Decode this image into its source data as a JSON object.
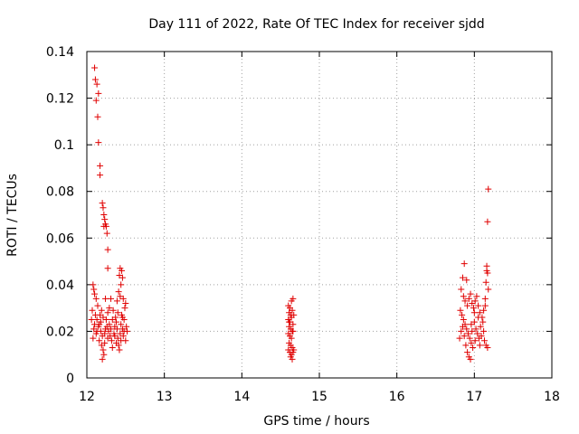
{
  "chart_data": {
    "type": "scatter",
    "title": "Day 111 of 2022, Rate Of TEC Index for receiver sjdd",
    "xlabel": "GPS time / hours",
    "ylabel": "ROTI / TECUs",
    "xlim": [
      12,
      18
    ],
    "ylim": [
      0,
      0.14
    ],
    "xticks": [
      "12",
      "13",
      "14",
      "15",
      "16",
      "17",
      "18"
    ],
    "yticks": [
      "0",
      "0.02",
      "0.04",
      "0.06",
      "0.08",
      "0.1",
      "0.12",
      "0.14"
    ],
    "grid": true,
    "marker": "+",
    "marker_color": "#e00000",
    "series": [
      {
        "name": "ROTI",
        "points": [
          [
            12.1,
            0.133
          ],
          [
            12.11,
            0.128
          ],
          [
            12.13,
            0.126
          ],
          [
            12.12,
            0.119
          ],
          [
            12.15,
            0.122
          ],
          [
            12.14,
            0.112
          ],
          [
            12.15,
            0.101
          ],
          [
            12.17,
            0.091
          ],
          [
            12.17,
            0.087
          ],
          [
            12.2,
            0.075
          ],
          [
            12.21,
            0.073
          ],
          [
            12.22,
            0.07
          ],
          [
            12.23,
            0.068
          ],
          [
            12.24,
            0.066
          ],
          [
            12.22,
            0.065
          ],
          [
            12.25,
            0.065
          ],
          [
            12.26,
            0.062
          ],
          [
            12.27,
            0.055
          ],
          [
            12.27,
            0.047
          ],
          [
            12.43,
            0.047
          ],
          [
            12.45,
            0.046
          ],
          [
            12.42,
            0.044
          ],
          [
            12.46,
            0.043
          ],
          [
            12.44,
            0.04
          ],
          [
            12.41,
            0.037
          ],
          [
            12.43,
            0.035
          ],
          [
            12.47,
            0.034
          ],
          [
            12.39,
            0.033
          ],
          [
            12.08,
            0.04
          ],
          [
            12.09,
            0.038
          ],
          [
            12.1,
            0.036
          ],
          [
            12.12,
            0.034
          ],
          [
            12.14,
            0.031
          ],
          [
            12.07,
            0.029
          ],
          [
            12.11,
            0.027
          ],
          [
            12.13,
            0.025
          ],
          [
            12.16,
            0.023
          ],
          [
            12.09,
            0.021
          ],
          [
            12.12,
            0.019
          ],
          [
            12.08,
            0.017
          ],
          [
            12.15,
            0.022
          ],
          [
            12.18,
            0.02
          ],
          [
            12.2,
            0.018
          ],
          [
            12.19,
            0.014
          ],
          [
            12.21,
            0.012
          ],
          [
            12.22,
            0.01
          ],
          [
            12.2,
            0.008
          ],
          [
            12.23,
            0.015
          ],
          [
            12.25,
            0.025
          ],
          [
            12.26,
            0.022
          ],
          [
            12.28,
            0.02
          ],
          [
            12.3,
            0.018
          ],
          [
            12.27,
            0.028
          ],
          [
            12.29,
            0.03
          ],
          [
            12.31,
            0.034
          ],
          [
            12.24,
            0.034
          ],
          [
            12.32,
            0.016
          ],
          [
            12.33,
            0.013
          ],
          [
            12.35,
            0.019
          ],
          [
            12.36,
            0.022
          ],
          [
            12.37,
            0.026
          ],
          [
            12.38,
            0.024
          ],
          [
            12.34,
            0.029
          ],
          [
            12.39,
            0.021
          ],
          [
            12.4,
            0.017
          ],
          [
            12.41,
            0.014
          ],
          [
            12.42,
            0.012
          ],
          [
            12.43,
            0.019
          ],
          [
            12.44,
            0.023
          ],
          [
            12.45,
            0.027
          ],
          [
            12.46,
            0.021
          ],
          [
            12.47,
            0.018
          ],
          [
            12.48,
            0.025
          ],
          [
            12.49,
            0.03
          ],
          [
            12.5,
            0.032
          ],
          [
            12.51,
            0.022
          ],
          [
            12.52,
            0.02
          ],
          [
            12.5,
            0.016
          ],
          [
            12.17,
            0.027
          ],
          [
            12.19,
            0.029
          ],
          [
            12.23,
            0.019
          ],
          [
            12.27,
            0.017
          ],
          [
            12.29,
            0.023
          ],
          [
            12.31,
            0.021
          ],
          [
            12.33,
            0.025
          ],
          [
            12.36,
            0.018
          ],
          [
            12.38,
            0.015
          ],
          [
            12.4,
            0.028
          ],
          [
            12.44,
            0.016
          ],
          [
            12.46,
            0.026
          ],
          [
            12.48,
            0.02
          ],
          [
            12.1,
            0.023
          ],
          [
            12.06,
            0.025
          ],
          [
            12.13,
            0.02
          ],
          [
            12.16,
            0.016
          ],
          [
            12.18,
            0.024
          ],
          [
            12.21,
            0.026
          ],
          [
            12.24,
            0.021
          ],
          [
            14.6,
            0.031
          ],
          [
            14.62,
            0.03
          ],
          [
            14.64,
            0.033
          ],
          [
            14.66,
            0.034
          ],
          [
            14.61,
            0.028
          ],
          [
            14.63,
            0.027
          ],
          [
            14.65,
            0.029
          ],
          [
            14.6,
            0.025
          ],
          [
            14.62,
            0.024
          ],
          [
            14.64,
            0.026
          ],
          [
            14.66,
            0.023
          ],
          [
            14.61,
            0.022
          ],
          [
            14.63,
            0.021
          ],
          [
            14.65,
            0.02
          ],
          [
            14.6,
            0.019
          ],
          [
            14.62,
            0.018
          ],
          [
            14.64,
            0.017
          ],
          [
            14.66,
            0.02
          ],
          [
            14.61,
            0.015
          ],
          [
            14.63,
            0.014
          ],
          [
            14.65,
            0.013
          ],
          [
            14.67,
            0.012
          ],
          [
            14.6,
            0.012
          ],
          [
            14.62,
            0.011
          ],
          [
            14.64,
            0.01
          ],
          [
            14.63,
            0.009
          ],
          [
            14.65,
            0.008
          ],
          [
            14.66,
            0.011
          ],
          [
            14.61,
            0.024
          ],
          [
            14.67,
            0.027
          ],
          [
            16.85,
            0.043
          ],
          [
            16.87,
            0.049
          ],
          [
            16.9,
            0.042
          ],
          [
            16.83,
            0.038
          ],
          [
            16.86,
            0.035
          ],
          [
            16.88,
            0.033
          ],
          [
            16.91,
            0.031
          ],
          [
            16.93,
            0.034
          ],
          [
            16.95,
            0.036
          ],
          [
            16.97,
            0.032
          ],
          [
            16.99,
            0.03
          ],
          [
            17.01,
            0.033
          ],
          [
            17.03,
            0.035
          ],
          [
            17.05,
            0.031
          ],
          [
            17.07,
            0.028
          ],
          [
            16.82,
            0.029
          ],
          [
            16.84,
            0.027
          ],
          [
            16.86,
            0.025
          ],
          [
            16.88,
            0.023
          ],
          [
            16.9,
            0.021
          ],
          [
            16.92,
            0.019
          ],
          [
            16.94,
            0.017
          ],
          [
            16.96,
            0.015
          ],
          [
            16.98,
            0.013
          ],
          [
            16.91,
            0.011
          ],
          [
            16.93,
            0.009
          ],
          [
            16.95,
            0.008
          ],
          [
            16.89,
            0.014
          ],
          [
            16.87,
            0.018
          ],
          [
            16.85,
            0.022
          ],
          [
            17.0,
            0.024
          ],
          [
            17.02,
            0.021
          ],
          [
            17.04,
            0.019
          ],
          [
            17.06,
            0.017
          ],
          [
            17.08,
            0.022
          ],
          [
            17.1,
            0.026
          ],
          [
            17.12,
            0.029
          ],
          [
            17.14,
            0.031
          ],
          [
            17.11,
            0.024
          ],
          [
            17.09,
            0.018
          ],
          [
            17.13,
            0.016
          ],
          [
            17.15,
            0.014
          ],
          [
            17.17,
            0.013
          ],
          [
            17.16,
            0.046
          ],
          [
            17.17,
            0.045
          ],
          [
            17.16,
            0.048
          ],
          [
            17.18,
            0.038
          ],
          [
            17.15,
            0.041
          ],
          [
            17.14,
            0.034
          ],
          [
            17.18,
            0.081
          ],
          [
            17.17,
            0.067
          ],
          [
            16.97,
            0.02
          ],
          [
            17.01,
            0.016
          ],
          [
            17.05,
            0.026
          ],
          [
            16.83,
            0.02
          ],
          [
            16.81,
            0.017
          ],
          [
            17.12,
            0.02
          ],
          [
            17.0,
            0.028
          ],
          [
            16.96,
            0.023
          ],
          [
            17.07,
            0.014
          ]
        ]
      }
    ]
  }
}
